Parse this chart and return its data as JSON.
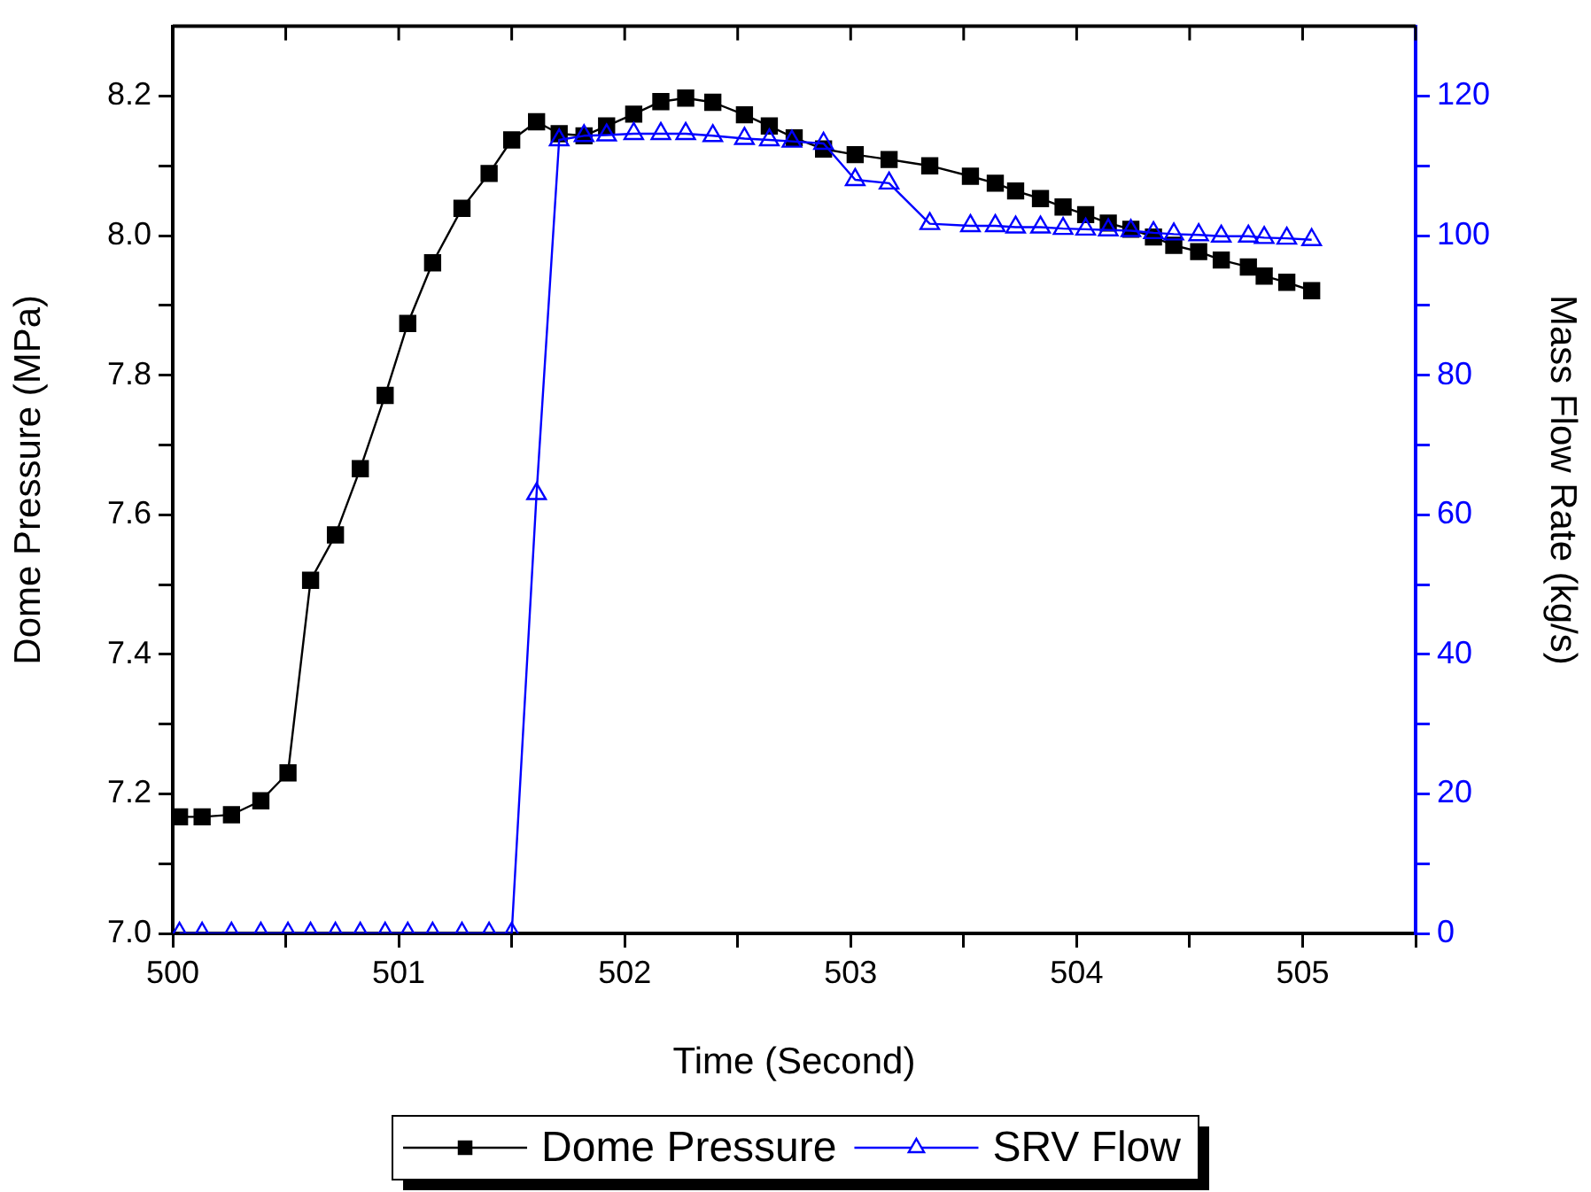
{
  "chart_data": {
    "type": "line",
    "xlabel": "Time (Second)",
    "ylabel": "Dome Pressure (MPa)",
    "y2label": "Mass Flow Rate (kg/s)",
    "xlim": [
      500,
      505.5
    ],
    "xticks": [
      500,
      {
        "value": 500.5,
        "label": null
      },
      501,
      {
        "value": 501.5,
        "label": null
      },
      502,
      {
        "value": 502.5,
        "label": null
      },
      503,
      {
        "value": 503.5,
        "label": null
      },
      504,
      {
        "value": 504.5,
        "label": null
      },
      505,
      {
        "value": 505.5,
        "label": null
      }
    ],
    "ylim": [
      7,
      8.3
    ],
    "yticks": [
      {
        "value": 7,
        "label": "7.0"
      },
      {
        "value": 7.1,
        "label": null
      },
      {
        "value": 7.2,
        "label": "7.2"
      },
      {
        "value": 7.3,
        "label": null
      },
      {
        "value": 7.4,
        "label": "7.4"
      },
      {
        "value": 7.5,
        "label": null
      },
      {
        "value": 7.6,
        "label": "7.6"
      },
      {
        "value": 7.7,
        "label": null
      },
      {
        "value": 7.8,
        "label": "7.8"
      },
      {
        "value": 7.9,
        "label": null
      },
      {
        "value": 8,
        "label": "8.0"
      },
      {
        "value": 8.1,
        "label": null
      },
      {
        "value": 8.2,
        "label": "8.2"
      }
    ],
    "y2lim": [
      0,
      130
    ],
    "y2ticks": [
      0,
      {
        "value": 10,
        "label": null
      },
      20,
      {
        "value": 30,
        "label": null
      },
      40,
      {
        "value": 50,
        "label": null
      },
      60,
      {
        "value": 70,
        "label": null
      },
      80,
      {
        "value": 90,
        "label": null
      },
      100,
      {
        "value": 110,
        "label": null
      },
      120
    ],
    "grid": false,
    "legend": "bottom",
    "line_style": "solid",
    "series": [
      {
        "name": "Dome Pressure",
        "color": "#000000",
        "marker": "square",
        "x": [
          500.03,
          500.13,
          500.26,
          500.39,
          500.51,
          500.61,
          500.72,
          500.83,
          500.94,
          501.04,
          501.15,
          501.28,
          501.4,
          501.5,
          501.61,
          501.71,
          501.82,
          501.92,
          502.04,
          502.16,
          502.27,
          502.39,
          502.53,
          502.64,
          502.75,
          502.88,
          503.02,
          503.17,
          503.35,
          503.53,
          503.64,
          503.73,
          503.84,
          503.94,
          504.04,
          504.14,
          504.24,
          504.34,
          504.43,
          504.54,
          504.64,
          504.76,
          504.83,
          504.93,
          505.04
        ],
        "values": [
          7.167,
          7.167,
          7.17,
          7.19,
          7.23,
          7.506,
          7.571,
          7.666,
          7.771,
          7.874,
          7.961,
          8.039,
          8.089,
          8.137,
          8.163,
          8.146,
          8.143,
          8.157,
          8.174,
          8.192,
          8.197,
          8.191,
          8.173,
          8.157,
          8.14,
          8.124,
          8.116,
          8.109,
          8.1,
          8.085,
          8.075,
          8.064,
          8.053,
          8.041,
          8.03,
          8.018,
          8.009,
          7.998,
          7.986,
          7.977,
          7.965,
          7.955,
          7.942,
          7.933,
          7.921
        ]
      },
      {
        "name": "SRV Flow",
        "color": "#0000ff",
        "marker": "triangle",
        "axis": "y2",
        "x": [
          500.03,
          500.13,
          500.26,
          500.39,
          500.51,
          500.61,
          500.72,
          500.83,
          500.94,
          501.04,
          501.15,
          501.28,
          501.4,
          501.5,
          501.61,
          501.71,
          501.82,
          501.92,
          502.04,
          502.16,
          502.27,
          502.39,
          502.53,
          502.64,
          502.74,
          502.88,
          503.02,
          503.17,
          503.35,
          503.53,
          503.64,
          503.73,
          503.84,
          503.94,
          504.04,
          504.14,
          504.24,
          504.34,
          504.43,
          504.54,
          504.64,
          504.76,
          504.83,
          504.93,
          505.04
        ],
        "values": [
          0,
          0,
          0,
          0,
          0,
          0,
          0,
          0,
          0,
          0,
          0,
          0,
          0,
          0,
          63,
          113.7,
          114.3,
          114.4,
          114.6,
          114.6,
          114.6,
          114.3,
          113.9,
          113.7,
          113.5,
          113.2,
          108,
          107.5,
          101.7,
          101.4,
          101.4,
          101.2,
          101.2,
          101,
          100.9,
          100.8,
          100.7,
          100.4,
          100.2,
          100.1,
          99.9,
          99.9,
          99.7,
          99.6,
          99.4
        ]
      }
    ]
  }
}
